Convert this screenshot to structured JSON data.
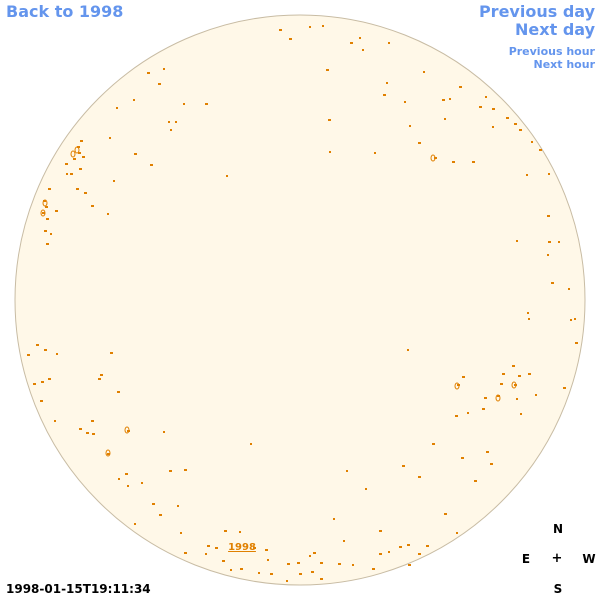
{
  "nav": {
    "back_label": "Back to 1998",
    "prev_day_label": "Previous day",
    "next_day_label": "Next day",
    "prev_hour_label": "Previous hour",
    "next_hour_label": "Next hour"
  },
  "sky": {
    "marker_label": "1998",
    "disc_color": "#fff8e8",
    "mark_color": "#e08000",
    "border_color": "#c8bca4"
  },
  "compass": {
    "north": "N",
    "east": "E",
    "center": "+",
    "west": "W",
    "south": "S"
  },
  "timestamp": "1998-01-15T19:11:34"
}
